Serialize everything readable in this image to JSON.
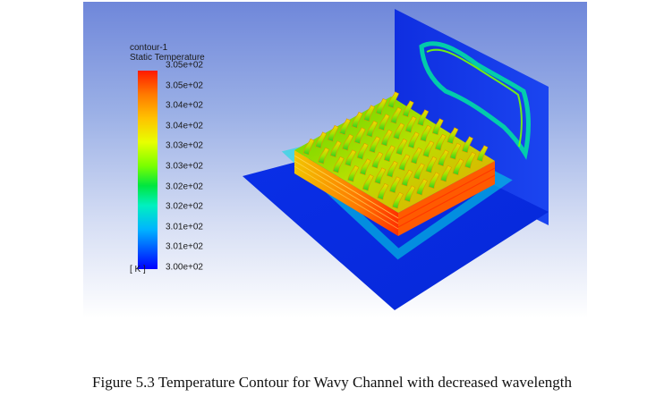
{
  "legend": {
    "name": "contour-1",
    "variable": "Static Temperature",
    "unit": "[ K ]",
    "ticks": [
      "3.05e+02",
      "3.05e+02",
      "3.04e+02",
      "3.04e+02",
      "3.03e+02",
      "3.03e+02",
      "3.02e+02",
      "3.02e+02",
      "3.01e+02",
      "3.01e+02",
      "3.00e+02"
    ],
    "colors": {
      "max": "#ff1a00",
      "mid": "#7aff00",
      "min": "#0000ff"
    }
  },
  "caption": "Figure 5.3 Temperature Contour for Wavy Channel with decreased wavelength"
}
